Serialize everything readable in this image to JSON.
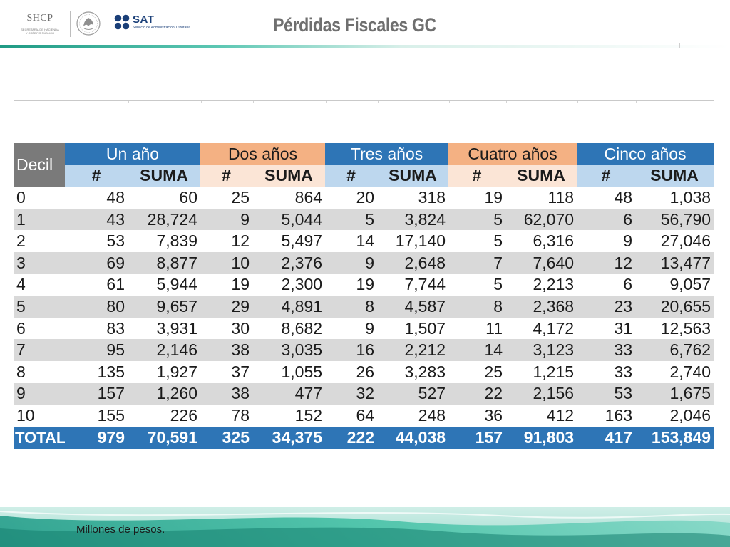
{
  "header": {
    "shcp": {
      "title": "SHCP",
      "subtitle_lines": [
        "SECRETARÍA DE HACIENDA",
        "Y CRÉDITO PÚBLICO"
      ]
    },
    "sat": {
      "name": "SAT",
      "subtitle": "Servicio de Administración Tributaria"
    },
    "title": "Pérdidas Fiscales GC"
  },
  "colors": {
    "blue": "#2e75b6",
    "light_blue": "#bdd7ee",
    "orange": "#f4b183",
    "light_orange": "#fbe5d6",
    "gray": "#7a7a7a",
    "stripe": "#d9d9d9",
    "accent_green": "#2aa58a"
  },
  "table": {
    "decil_label": "Decil",
    "groups": [
      {
        "label": "Un año",
        "style": "blue"
      },
      {
        "label": "Dos años",
        "style": "orange"
      },
      {
        "label": "Tres años",
        "style": "blue"
      },
      {
        "label": "Cuatro años",
        "style": "orange"
      },
      {
        "label": "Cinco años",
        "style": "blue"
      }
    ],
    "sub_headers": [
      "#",
      "SUMA"
    ],
    "rows": [
      {
        "decil": "0",
        "values": [
          "48",
          "60",
          "25",
          "864",
          "20",
          "318",
          "19",
          "118",
          "48",
          "1,038"
        ]
      },
      {
        "decil": "1",
        "values": [
          "43",
          "28,724",
          "9",
          "5,044",
          "5",
          "3,824",
          "5",
          "62,070",
          "6",
          "56,790"
        ]
      },
      {
        "decil": "2",
        "values": [
          "53",
          "7,839",
          "12",
          "5,497",
          "14",
          "17,140",
          "5",
          "6,316",
          "9",
          "27,046"
        ]
      },
      {
        "decil": "3",
        "values": [
          "69",
          "8,877",
          "10",
          "2,376",
          "9",
          "2,648",
          "7",
          "7,640",
          "12",
          "13,477"
        ]
      },
      {
        "decil": "4",
        "values": [
          "61",
          "5,944",
          "19",
          "2,300",
          "19",
          "7,744",
          "5",
          "2,213",
          "6",
          "9,057"
        ]
      },
      {
        "decil": "5",
        "values": [
          "80",
          "9,657",
          "29",
          "4,891",
          "8",
          "4,587",
          "8",
          "2,368",
          "23",
          "20,655"
        ]
      },
      {
        "decil": "6",
        "values": [
          "83",
          "3,931",
          "30",
          "8,682",
          "9",
          "1,507",
          "11",
          "4,172",
          "31",
          "12,563"
        ]
      },
      {
        "decil": "7",
        "values": [
          "95",
          "2,146",
          "38",
          "3,035",
          "16",
          "2,212",
          "14",
          "3,123",
          "33",
          "6,762"
        ]
      },
      {
        "decil": "8",
        "values": [
          "135",
          "1,927",
          "37",
          "1,055",
          "26",
          "3,283",
          "25",
          "1,215",
          "33",
          "2,740"
        ]
      },
      {
        "decil": "9",
        "values": [
          "157",
          "1,260",
          "38",
          "477",
          "32",
          "527",
          "22",
          "2,156",
          "53",
          "1,675"
        ]
      },
      {
        "decil": "10",
        "values": [
          "155",
          "226",
          "78",
          "152",
          "64",
          "248",
          "36",
          "412",
          "163",
          "2,046"
        ]
      }
    ],
    "total": {
      "label": "TOTAL",
      "values": [
        "979",
        "70,591",
        "325",
        "34,375",
        "222",
        "44,038",
        "157",
        "91,803",
        "417",
        "153,849"
      ]
    }
  },
  "footer": {
    "note": "Millones de pesos."
  }
}
